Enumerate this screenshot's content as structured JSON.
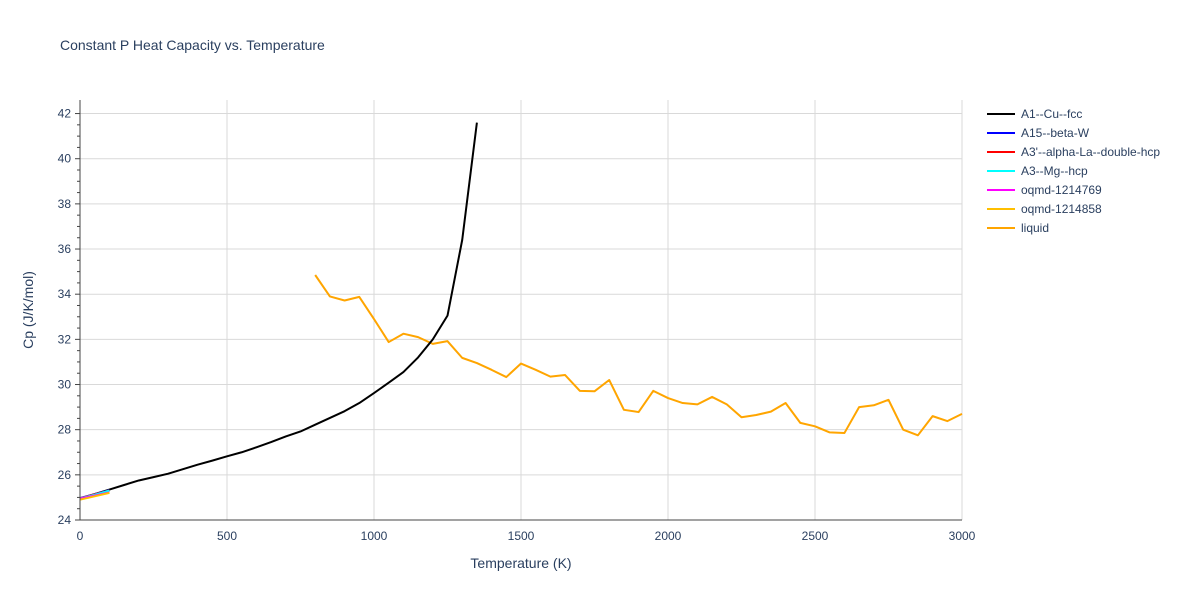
{
  "chart_data": {
    "type": "line",
    "title": "Constant P Heat Capacity vs. Temperature",
    "xlabel": "Temperature (K)",
    "ylabel": "Cp (J/K/mol)",
    "xlim": [
      0,
      3000
    ],
    "ylim": [
      24,
      42.6
    ],
    "x_ticks": [
      0,
      500,
      1000,
      1500,
      2000,
      2500,
      3000
    ],
    "x_tick_labels": [
      "0",
      "500",
      "1000",
      "1500",
      "2000",
      "2500",
      "3000"
    ],
    "y_ticks": [
      24,
      26,
      28,
      30,
      32,
      34,
      36,
      38,
      40,
      42
    ],
    "y_tick_labels": [
      "24",
      "26",
      "28",
      "30",
      "32",
      "34",
      "36",
      "38",
      "40",
      "42"
    ],
    "grid": true,
    "legend_position": "top-right",
    "series": [
      {
        "name": "A1--Cu--fcc",
        "color": "#000000",
        "x": [
          0,
          50,
          100,
          150,
          200,
          250,
          300,
          350,
          400,
          450,
          500,
          550,
          600,
          650,
          700,
          750,
          800,
          850,
          900,
          950,
          1000,
          1050,
          1100,
          1150,
          1200,
          1250,
          1300,
          1350
        ],
        "y": [
          24.95,
          25.15,
          25.35,
          25.55,
          25.75,
          25.9,
          26.05,
          26.25,
          26.45,
          26.63,
          26.82,
          27.0,
          27.22,
          27.45,
          27.7,
          27.92,
          28.22,
          28.52,
          28.82,
          29.18,
          29.62,
          30.08,
          30.55,
          31.2,
          32.0,
          33.05,
          36.4,
          41.6
        ]
      },
      {
        "name": "A15--beta-W",
        "color": "#0000ff",
        "x": [
          0,
          50,
          100
        ],
        "y": [
          24.97,
          25.15,
          25.32
        ]
      },
      {
        "name": "A3'--alpha-La--double-hcp",
        "color": "#ff0000",
        "x": [
          0,
          50,
          100
        ],
        "y": [
          24.96,
          25.14,
          25.3
        ]
      },
      {
        "name": "A3--Mg--hcp",
        "color": "#00ffff",
        "x": [
          0,
          50,
          100
        ],
        "y": [
          24.95,
          25.12,
          25.3
        ]
      },
      {
        "name": "oqmd-1214769",
        "color": "#ff00ff",
        "x": [
          0,
          50,
          100
        ],
        "y": [
          24.94,
          25.08,
          25.22
        ]
      },
      {
        "name": "oqmd-1214858",
        "color": "#ffbf00",
        "x": [
          0,
          50,
          100
        ],
        "y": [
          24.9,
          25.05,
          25.2
        ]
      },
      {
        "name": "liquid",
        "color": "#ffa500",
        "x": [
          800,
          850,
          900,
          950,
          1000,
          1050,
          1100,
          1150,
          1200,
          1250,
          1300,
          1350,
          1400,
          1450,
          1500,
          1550,
          1600,
          1650,
          1700,
          1750,
          1800,
          1850,
          1900,
          1950,
          2000,
          2050,
          2100,
          2150,
          2200,
          2250,
          2300,
          2350,
          2400,
          2450,
          2500,
          2550,
          2600,
          2650,
          2700,
          2750,
          2800,
          2850,
          2900,
          2950,
          3000
        ],
        "y": [
          34.85,
          33.9,
          33.72,
          33.88,
          32.9,
          31.88,
          32.25,
          32.1,
          31.8,
          31.92,
          31.18,
          30.95,
          30.65,
          30.33,
          30.93,
          30.65,
          30.35,
          30.42,
          29.72,
          29.7,
          30.2,
          28.88,
          28.78,
          29.72,
          29.4,
          29.18,
          29.12,
          29.45,
          29.12,
          28.55,
          28.65,
          28.8,
          29.18,
          28.3,
          28.15,
          27.88,
          27.85,
          29.0,
          29.08,
          29.32,
          28.0,
          27.75,
          28.6,
          28.38,
          28.7
        ]
      }
    ]
  }
}
